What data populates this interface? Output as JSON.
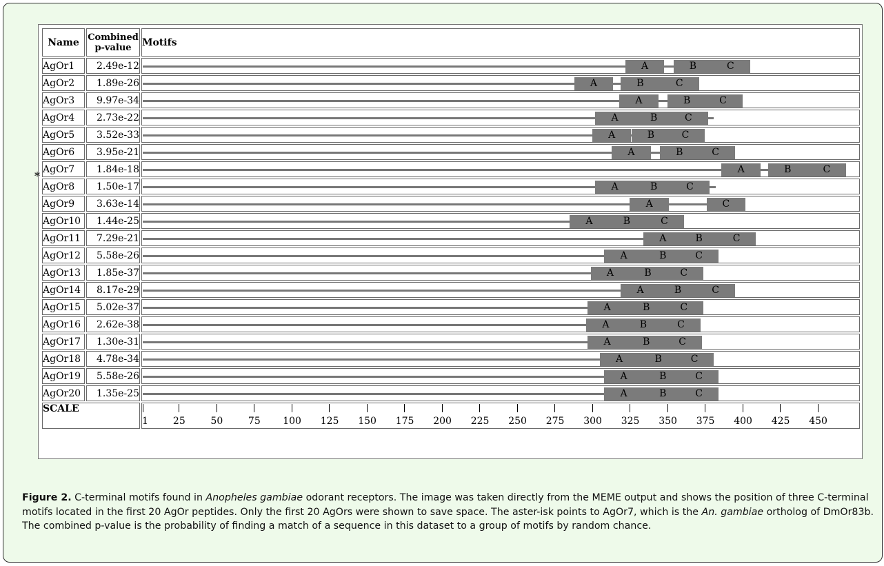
{
  "figure": {
    "headers": {
      "name": "Name",
      "pvalue_line1": "Combined",
      "pvalue_line2": "p-value",
      "motifs": "Motifs"
    },
    "scale_label": "SCALE",
    "asterisk": "*",
    "axis": {
      "min": 1,
      "max": 470,
      "ticks": [
        1,
        25,
        50,
        75,
        100,
        125,
        150,
        175,
        200,
        225,
        250,
        275,
        300,
        325,
        350,
        375,
        400,
        425,
        450
      ]
    },
    "rows": [
      {
        "name": "AgOr1",
        "pvalue": "2.49e-12",
        "length": 400,
        "motifs": [
          {
            "label": "A",
            "start": 322,
            "end": 348
          },
          {
            "label": "B",
            "start": 354,
            "end": 380
          },
          {
            "label": "C",
            "start": 379,
            "end": 405
          }
        ]
      },
      {
        "name": "AgOr2",
        "pvalue": "1.89e-26",
        "length": 365,
        "motifs": [
          {
            "label": "A",
            "start": 288,
            "end": 314
          },
          {
            "label": "B",
            "start": 319,
            "end": 345
          },
          {
            "label": "C",
            "start": 345,
            "end": 371
          }
        ]
      },
      {
        "name": "AgOr3",
        "pvalue": "9.97e-34",
        "length": 392,
        "motifs": [
          {
            "label": "A",
            "start": 318,
            "end": 344
          },
          {
            "label": "B",
            "start": 350,
            "end": 376
          },
          {
            "label": "C",
            "start": 374,
            "end": 400
          }
        ]
      },
      {
        "name": "AgOr4",
        "pvalue": "2.73e-22",
        "length": 381,
        "motifs": [
          {
            "label": "A",
            "start": 302,
            "end": 328
          },
          {
            "label": "B",
            "start": 328,
            "end": 354
          },
          {
            "label": "C",
            "start": 351,
            "end": 377
          }
        ]
      },
      {
        "name": "AgOr5",
        "pvalue": "3.52e-33",
        "length": 371,
        "motifs": [
          {
            "label": "A",
            "start": 300,
            "end": 326
          },
          {
            "label": "B",
            "start": 326,
            "end": 352
          },
          {
            "label": "C",
            "start": 349,
            "end": 375
          }
        ]
      },
      {
        "name": "AgOr6",
        "pvalue": "3.95e-21",
        "length": 388,
        "motifs": [
          {
            "label": "A",
            "start": 313,
            "end": 339
          },
          {
            "label": "B",
            "start": 345,
            "end": 371
          },
          {
            "label": "C",
            "start": 369,
            "end": 395
          }
        ]
      },
      {
        "name": "AgOr7",
        "pvalue": "1.84e-18",
        "length": 462,
        "motifs": [
          {
            "label": "A",
            "start": 386,
            "end": 412
          },
          {
            "label": "B",
            "start": 417,
            "end": 443
          },
          {
            "label": "C",
            "start": 443,
            "end": 469
          }
        ]
      },
      {
        "name": "AgOr8",
        "pvalue": "1.50e-17",
        "length": 382,
        "motifs": [
          {
            "label": "A",
            "start": 302,
            "end": 328
          },
          {
            "label": "B",
            "start": 328,
            "end": 354
          },
          {
            "label": "C",
            "start": 352,
            "end": 378
          }
        ]
      },
      {
        "name": "AgOr9",
        "pvalue": "3.63e-14",
        "length": 399,
        "motifs": [
          {
            "label": "A",
            "start": 325,
            "end": 351
          },
          {
            "label": "C",
            "start": 376,
            "end": 402
          }
        ]
      },
      {
        "name": "AgOr10",
        "pvalue": "1.44e-25",
        "length": 361,
        "motifs": [
          {
            "label": "A",
            "start": 285,
            "end": 311
          },
          {
            "label": "B",
            "start": 310,
            "end": 336
          },
          {
            "label": "C",
            "start": 335,
            "end": 361
          }
        ]
      },
      {
        "name": "AgOr11",
        "pvalue": "7.29e-21",
        "length": 406,
        "motifs": [
          {
            "label": "A",
            "start": 334,
            "end": 360
          },
          {
            "label": "B",
            "start": 358,
            "end": 384
          },
          {
            "label": "C",
            "start": 383,
            "end": 409
          }
        ]
      },
      {
        "name": "AgOr12",
        "pvalue": "5.58e-26",
        "length": 381,
        "motifs": [
          {
            "label": "A",
            "start": 308,
            "end": 334
          },
          {
            "label": "B",
            "start": 334,
            "end": 360
          },
          {
            "label": "C",
            "start": 358,
            "end": 384
          }
        ]
      },
      {
        "name": "AgOr13",
        "pvalue": "1.85e-37",
        "length": 371,
        "motifs": [
          {
            "label": "A",
            "start": 299,
            "end": 325
          },
          {
            "label": "B",
            "start": 324,
            "end": 350
          },
          {
            "label": "C",
            "start": 348,
            "end": 374
          }
        ]
      },
      {
        "name": "AgOr14",
        "pvalue": "8.17e-29",
        "length": 391,
        "motifs": [
          {
            "label": "A",
            "start": 319,
            "end": 345
          },
          {
            "label": "B",
            "start": 344,
            "end": 370
          },
          {
            "label": "C",
            "start": 369,
            "end": 395
          }
        ]
      },
      {
        "name": "AgOr15",
        "pvalue": "5.02e-37",
        "length": 371,
        "motifs": [
          {
            "label": "A",
            "start": 297,
            "end": 323
          },
          {
            "label": "B",
            "start": 323,
            "end": 349
          },
          {
            "label": "C",
            "start": 348,
            "end": 374
          }
        ]
      },
      {
        "name": "AgOr16",
        "pvalue": "2.62e-38",
        "length": 369,
        "motifs": [
          {
            "label": "A",
            "start": 296,
            "end": 322
          },
          {
            "label": "B",
            "start": 321,
            "end": 347
          },
          {
            "label": "C",
            "start": 346,
            "end": 372
          }
        ]
      },
      {
        "name": "AgOr17",
        "pvalue": "1.30e-31",
        "length": 371,
        "motifs": [
          {
            "label": "A",
            "start": 297,
            "end": 323
          },
          {
            "label": "B",
            "start": 323,
            "end": 349
          },
          {
            "label": "C",
            "start": 347,
            "end": 373
          }
        ]
      },
      {
        "name": "AgOr18",
        "pvalue": "4.78e-34",
        "length": 378,
        "motifs": [
          {
            "label": "A",
            "start": 305,
            "end": 331
          },
          {
            "label": "B",
            "start": 331,
            "end": 357
          },
          {
            "label": "C",
            "start": 355,
            "end": 381
          }
        ]
      },
      {
        "name": "AgOr19",
        "pvalue": "5.58e-26",
        "length": 381,
        "motifs": [
          {
            "label": "A",
            "start": 308,
            "end": 334
          },
          {
            "label": "B",
            "start": 334,
            "end": 360
          },
          {
            "label": "C",
            "start": 358,
            "end": 384
          }
        ]
      },
      {
        "name": "AgOr20",
        "pvalue": "1.35e-25",
        "length": 381,
        "motifs": [
          {
            "label": "A",
            "start": 308,
            "end": 334
          },
          {
            "label": "B",
            "start": 334,
            "end": 360
          },
          {
            "label": "C",
            "start": 358,
            "end": 384
          }
        ]
      }
    ]
  },
  "caption": {
    "label": "Figure 2.",
    "part1": " C-terminal motifs found in ",
    "species": "Anopheles gambiae",
    "part2": " odorant receptors. The image was taken directly from the MEME output and shows the position of three C-terminal motifs located in the first 20 AgOr peptides. Only the first 20 AgOrs were shown to save space. The aster-isk points to AgOr7, which is the ",
    "species_short": "An. gambiae",
    "part3": " ortholog of DmOr83b. The combined p-value is the probability of finding a match of a sequence in this dataset to a group of motifs by random chance."
  }
}
